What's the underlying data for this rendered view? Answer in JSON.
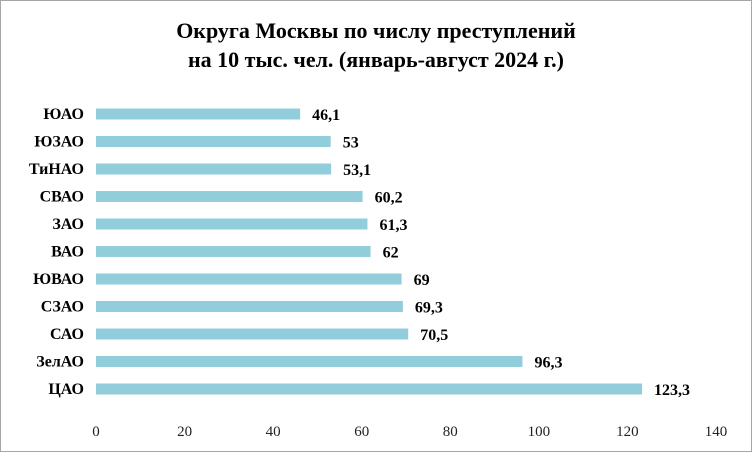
{
  "chart_data": {
    "type": "bar",
    "orientation": "horizontal",
    "title_lines": [
      "Округа Москвы по числу преступлений",
      "на 10 тыс. чел. (январь-август 2024 г.)"
    ],
    "categories": [
      "ЮАО",
      "ЮЗАО",
      "ТиНАО",
      "СВАО",
      "ЗАО",
      "ВАО",
      "ЮВАО",
      "СЗАО",
      "САО",
      "ЗелАО",
      "ЦАО"
    ],
    "values": [
      46.1,
      53,
      53.1,
      60.2,
      61.3,
      62,
      69,
      69.3,
      70.5,
      96.3,
      123.3
    ],
    "value_labels": [
      "46,1",
      "53",
      "53,1",
      "60,2",
      "61,3",
      "62",
      "69",
      "69,3",
      "70,5",
      "96,3",
      "123,3"
    ],
    "xlim": [
      0,
      140
    ],
    "x_ticks": [
      0,
      20,
      40,
      60,
      80,
      100,
      120,
      140
    ],
    "grid": false,
    "bar_color": "#92cddc"
  }
}
